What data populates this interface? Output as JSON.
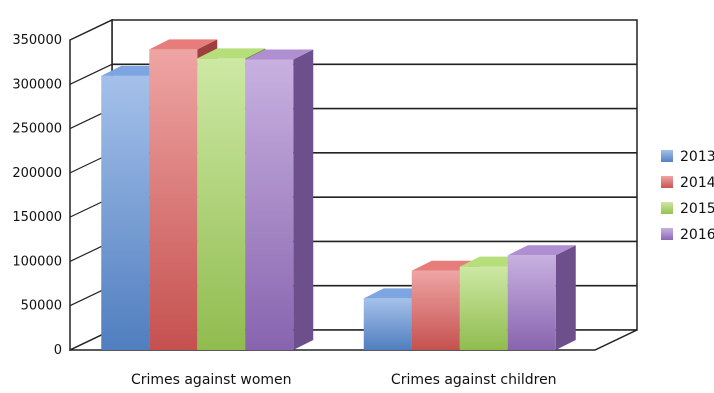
{
  "chart_data": {
    "type": "bar",
    "title": "",
    "xlabel": "",
    "ylabel": "",
    "categories": [
      "Crimes against women",
      "Crimes against children"
    ],
    "series": [
      {
        "name": "2013",
        "values": [
          309546,
          58224
        ]
      },
      {
        "name": "2014",
        "values": [
          339457,
          89423
        ]
      },
      {
        "name": "2015",
        "values": [
          329243,
          94172
        ]
      },
      {
        "name": "2016",
        "values": [
          328000,
          106958
        ]
      }
    ],
    "ylim": [
      0,
      350000
    ],
    "yticks": [
      0,
      50000,
      100000,
      150000,
      200000,
      250000,
      300000,
      350000
    ],
    "grid": true,
    "legend": "right",
    "colors": {
      "2013": "#5b8fd9",
      "2014": "#e05c5a",
      "2015": "#a4d65a",
      "2016": "#9b72c7"
    }
  }
}
